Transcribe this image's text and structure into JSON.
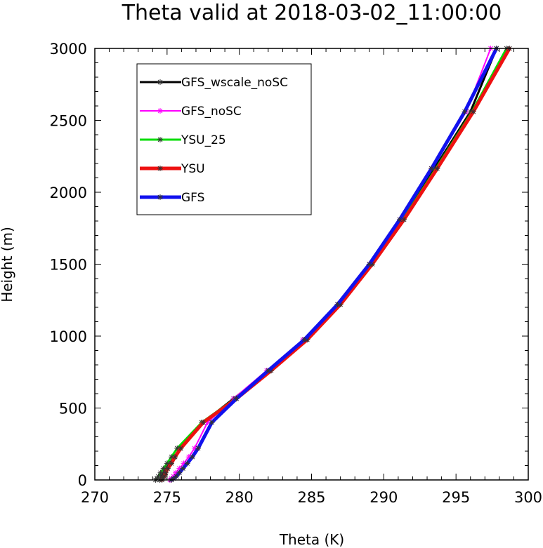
{
  "chart_data": {
    "type": "line",
    "title": "Theta valid at 2018-03-02_11:00:00",
    "xlabel": "Theta (K)",
    "ylabel": "Height (m)",
    "xlim": [
      270,
      300
    ],
    "ylim": [
      0,
      3000
    ],
    "xticks": [
      "270",
      "275",
      "280",
      "285",
      "290",
      "295",
      "300"
    ],
    "yticks": [
      "0",
      "500",
      "1000",
      "1500",
      "2000",
      "2500",
      "3000"
    ],
    "grid": false,
    "legend_position": "top-left",
    "series": [
      {
        "name": "GFS_wscale_noSC",
        "color": "#000000",
        "width": 3,
        "x": [
          274.5,
          274.55,
          274.6,
          274.75,
          274.95,
          275.2,
          275.5,
          275.9,
          277.5,
          279.6,
          282.1,
          284.6,
          286.9,
          289.1,
          291.2,
          293.5,
          296.0,
          297.8
        ],
        "y": [
          0,
          10,
          25,
          50,
          80,
          115,
          160,
          220,
          400,
          565,
          760,
          975,
          1220,
          1500,
          1810,
          2165,
          2560,
          3000
        ]
      },
      {
        "name": "GFS_noSC",
        "color": "#ff00ff",
        "width": 2,
        "x": [
          275.2,
          275.3,
          275.45,
          275.6,
          275.85,
          276.15,
          276.5,
          276.9,
          277.8,
          279.6,
          281.9,
          284.4,
          286.8,
          289.0,
          291.1,
          293.3,
          295.7,
          297.4
        ],
        "y": [
          0,
          10,
          25,
          50,
          80,
          115,
          160,
          220,
          400,
          565,
          760,
          975,
          1220,
          1500,
          1810,
          2165,
          2560,
          3000
        ]
      },
      {
        "name": "YSU_25",
        "color": "#00dd00",
        "width": 3,
        "x": [
          274.2,
          274.3,
          274.4,
          274.55,
          274.75,
          275.0,
          275.3,
          275.7,
          277.4,
          279.7,
          282.1,
          284.6,
          286.9,
          289.1,
          291.3,
          293.6,
          296.1,
          298.5
        ],
        "y": [
          0,
          10,
          25,
          50,
          80,
          115,
          160,
          220,
          400,
          565,
          760,
          975,
          1220,
          1500,
          1810,
          2165,
          2560,
          3000
        ]
      },
      {
        "name": "YSU",
        "color": "#ee1111",
        "width": 5,
        "x": [
          274.65,
          274.7,
          274.8,
          274.9,
          275.05,
          275.3,
          275.55,
          275.95,
          277.5,
          279.8,
          282.2,
          284.7,
          287.0,
          289.2,
          291.4,
          293.7,
          296.2,
          298.7
        ],
        "y": [
          0,
          10,
          25,
          50,
          80,
          115,
          160,
          220,
          400,
          565,
          760,
          975,
          1220,
          1500,
          1810,
          2165,
          2560,
          3000
        ]
      },
      {
        "name": "GFS",
        "color": "#1111ee",
        "width": 5,
        "x": [
          275.3,
          275.45,
          275.65,
          275.85,
          276.1,
          276.4,
          276.75,
          277.15,
          278.1,
          279.8,
          282.0,
          284.5,
          286.8,
          289.0,
          291.1,
          293.3,
          295.6,
          297.8
        ],
        "y": [
          0,
          10,
          25,
          50,
          80,
          115,
          160,
          220,
          400,
          565,
          760,
          975,
          1220,
          1500,
          1810,
          2165,
          2560,
          3000
        ]
      }
    ]
  }
}
